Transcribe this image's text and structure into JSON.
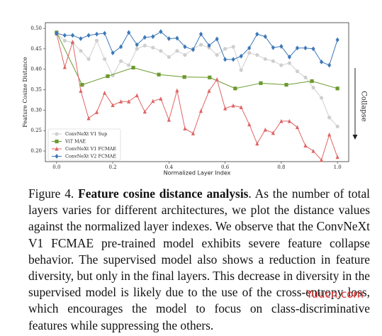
{
  "chart_data": {
    "type": "line",
    "xlabel": "Normalized Layer Index",
    "ylabel": "Feature Cosine Distance",
    "annotation": "Collapse",
    "x": [
      0,
      0.029,
      0.057,
      0.086,
      0.114,
      0.143,
      0.171,
      0.2,
      0.229,
      0.257,
      0.286,
      0.314,
      0.343,
      0.371,
      0.4,
      0.429,
      0.457,
      0.486,
      0.514,
      0.543,
      0.571,
      0.6,
      0.629,
      0.657,
      0.686,
      0.714,
      0.743,
      0.771,
      0.8,
      0.829,
      0.857,
      0.886,
      0.914,
      0.943,
      0.971,
      1.0
    ],
    "xlim": [
      -0.04,
      1.04
    ],
    "ylim": [
      0.174,
      0.514
    ],
    "xticks": [
      {
        "value": 0,
        "label": "0.0"
      },
      {
        "value": 0.2,
        "label": "0.2"
      },
      {
        "value": 0.4,
        "label": "0.4"
      },
      {
        "value": 0.6,
        "label": "0.6"
      },
      {
        "value": 0.8,
        "label": "0.8"
      },
      {
        "value": 1,
        "label": "1.0"
      }
    ],
    "yticks": [
      {
        "value": 0.2,
        "label": "0.20"
      },
      {
        "value": 0.25,
        "label": "0.25"
      },
      {
        "value": 0.3,
        "label": "0.30"
      },
      {
        "value": 0.35,
        "label": "0.35"
      },
      {
        "value": 0.4,
        "label": "0.40"
      },
      {
        "value": 0.45,
        "label": "0.45"
      },
      {
        "value": 0.5,
        "label": "0.50"
      }
    ],
    "legend": "lower left",
    "series": [
      {
        "name": "ConvNeXt V1 Sup",
        "color": "#cfcfcf",
        "marker": "circle",
        "values": [
          0.487,
          0.47,
          0.465,
          0.445,
          0.425,
          0.47,
          0.425,
          0.385,
          0.42,
          0.41,
          0.45,
          0.458,
          0.453,
          0.445,
          0.43,
          0.445,
          0.435,
          0.45,
          0.46,
          0.453,
          0.435,
          0.45,
          0.455,
          0.398,
          0.44,
          0.435,
          0.425,
          0.42,
          0.41,
          0.415,
          0.395,
          0.38,
          0.355,
          0.33,
          0.282,
          0.26
        ]
      },
      {
        "name": "ViT MAE",
        "color": "#6b9a2e",
        "marker": "square",
        "x": [
          0,
          0.091,
          0.182,
          0.273,
          0.364,
          0.455,
          0.545,
          0.636,
          0.727,
          0.818,
          0.909,
          1.0
        ],
        "values": [
          0.49,
          0.362,
          0.383,
          0.404,
          0.387,
          0.381,
          0.38,
          0.353,
          0.366,
          0.362,
          0.371,
          0.353
        ]
      },
      {
        "name": "ConvNeXt V1 FCMAE",
        "color": "#e06464",
        "marker": "triangle",
        "values": [
          0.487,
          0.405,
          0.467,
          0.347,
          0.28,
          0.295,
          0.342,
          0.312,
          0.321,
          0.321,
          0.336,
          0.296,
          0.322,
          0.328,
          0.276,
          0.348,
          0.255,
          0.243,
          0.298,
          0.347,
          0.375,
          0.304,
          0.311,
          0.307,
          0.265,
          0.218,
          0.252,
          0.244,
          0.273,
          0.273,
          0.258,
          0.213,
          0.2,
          0.178,
          0.24,
          0.185
        ]
      },
      {
        "name": "ConvNeXt V2 FCMAE",
        "color": "#3c78b8",
        "marker": "diamond",
        "values": [
          0.488,
          0.483,
          0.483,
          0.475,
          0.483,
          0.486,
          0.488,
          0.44,
          0.455,
          0.49,
          0.46,
          0.478,
          0.48,
          0.492,
          0.475,
          0.476,
          0.455,
          0.448,
          0.486,
          0.458,
          0.474,
          0.424,
          0.424,
          0.432,
          0.452,
          0.486,
          0.48,
          0.453,
          0.456,
          0.43,
          0.452,
          0.452,
          0.45,
          0.418,
          0.41,
          0.472
        ]
      }
    ]
  },
  "caption": {
    "label": "Figure 4.",
    "title": "Feature cosine distance analysis",
    "text": ". As the number of total layers varies for different architectures, we plot the distance values against the normalized layer indexes. We observe that the ConvNeXt V1 FCMAE pre-trained model exhibits severe feature collapse behavior. The supervised model also shows a reduction in feature diversity, but only in the final layers. This decrease in diversity in the supervised model is likely due to the use of the cross-entropy loss, which encourages the model to focus on class-discriminative features while suppressing the others."
  },
  "watermark": "Yuucn.com"
}
